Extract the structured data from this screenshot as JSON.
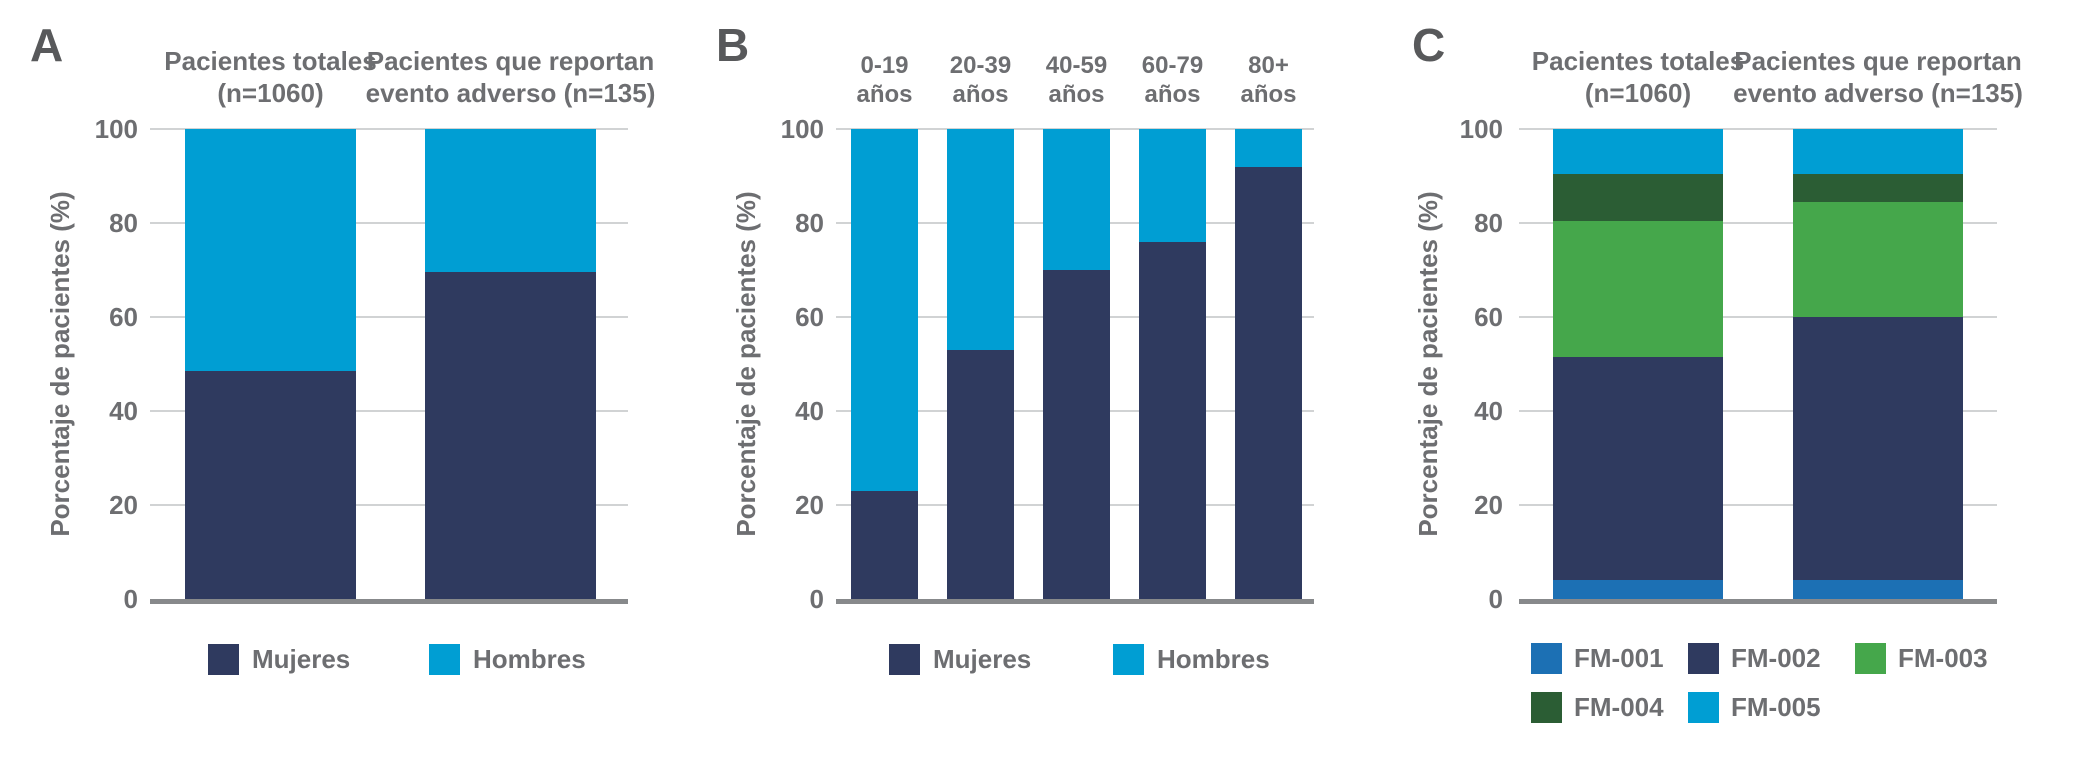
{
  "figure": {
    "background": "#FFFFFF",
    "text_color": "#6D6E71",
    "panel_letter_color": "#58595B",
    "grid_color": "#D1D3D4",
    "axis_line_color": "#87898B",
    "palette": {
      "navy": "#2F3A5F",
      "cyan": "#009ED3",
      "blue": "#1C70B4",
      "green": "#45A74B",
      "dark_green": "#2B5D34"
    }
  },
  "chart_data": [
    {
      "panel": "A",
      "type": "bar",
      "stacked": true,
      "ylabel": "Porcentaje de pacientes (%)",
      "ylim": [
        0,
        100
      ],
      "yticks": [
        0,
        20,
        40,
        60,
        80,
        100
      ],
      "grid": true,
      "legend_position": "bottom",
      "categories": [
        "Pacientes totales (n=1060)",
        "Pacientes que reportan evento adverso (n=135)"
      ],
      "category_lines": [
        [
          "Pacientes totales",
          "(n=1060)"
        ],
        [
          "Pacientes que reportan",
          "evento adverso (n=135)"
        ]
      ],
      "series": [
        {
          "name": "Mujeres",
          "color": "navy",
          "values": [
            48.5,
            69.5
          ]
        },
        {
          "name": "Hombres",
          "color": "cyan",
          "values": [
            51.5,
            30.5
          ]
        }
      ]
    },
    {
      "panel": "B",
      "type": "bar",
      "stacked": true,
      "ylabel": "Porcentaje de pacientes (%)",
      "ylim": [
        0,
        100
      ],
      "yticks": [
        0,
        20,
        40,
        60,
        80,
        100
      ],
      "grid": true,
      "legend_position": "bottom",
      "categories": [
        "0-19 años",
        "20-39 años",
        "40-59 años",
        "60-79 años",
        "80+ años"
      ],
      "category_lines": [
        [
          "0-19",
          "años"
        ],
        [
          "20-39",
          "años"
        ],
        [
          "40-59",
          "años"
        ],
        [
          "60-79",
          "años"
        ],
        [
          "80+",
          "años"
        ]
      ],
      "series": [
        {
          "name": "Mujeres",
          "color": "navy",
          "values": [
            23,
            53,
            70,
            76,
            92
          ]
        },
        {
          "name": "Hombres",
          "color": "cyan",
          "values": [
            77,
            47,
            30,
            24,
            8
          ]
        }
      ]
    },
    {
      "panel": "C",
      "type": "bar",
      "stacked": true,
      "ylabel": "Porcentaje de pacientes (%)",
      "ylim": [
        0,
        100
      ],
      "yticks": [
        0,
        20,
        40,
        60,
        80,
        100
      ],
      "grid": true,
      "legend_position": "bottom",
      "categories": [
        "Pacientes totales (n=1060)",
        "Pacientes que reportan evento adverso (n=135)"
      ],
      "category_lines": [
        [
          "Pacientes totales",
          "(n=1060)"
        ],
        [
          "Pacientes que reportan",
          "evento adverso (n=135)"
        ]
      ],
      "series": [
        {
          "name": "FM-001",
          "color": "blue",
          "values": [
            4,
            4
          ]
        },
        {
          "name": "FM-002",
          "color": "navy",
          "values": [
            47.5,
            56
          ]
        },
        {
          "name": "FM-003",
          "color": "green",
          "values": [
            29,
            24.5
          ]
        },
        {
          "name": "FM-004",
          "color": "dark_green",
          "values": [
            10,
            6
          ]
        },
        {
          "name": "FM-005",
          "color": "cyan",
          "values": [
            9.5,
            9.5
          ]
        }
      ]
    }
  ]
}
